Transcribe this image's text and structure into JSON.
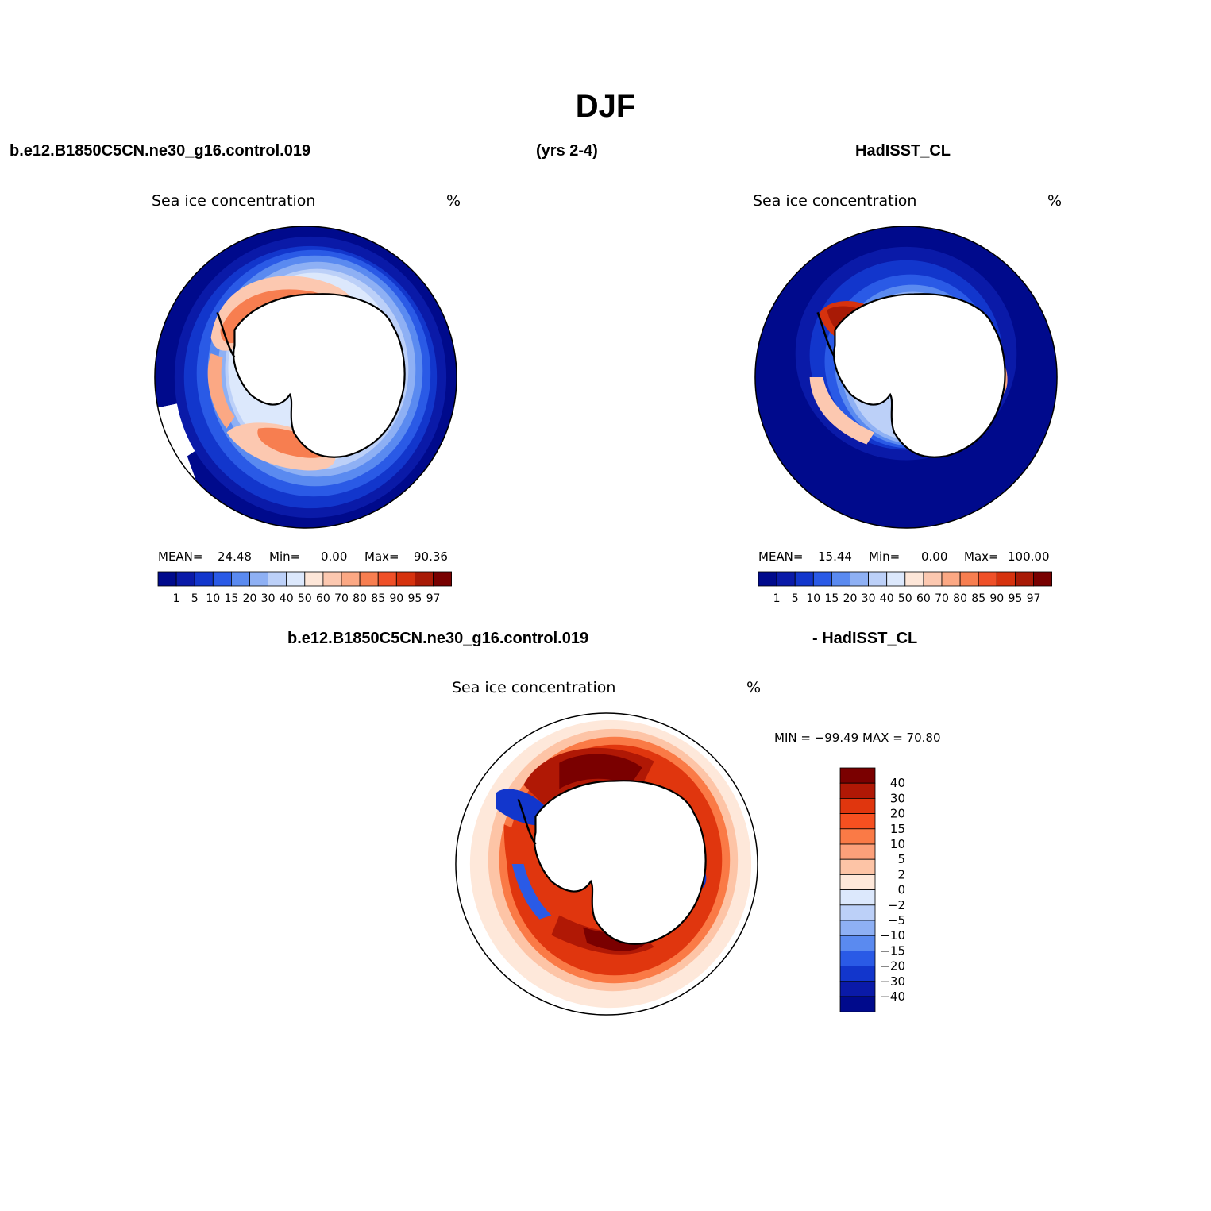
{
  "figure": {
    "title": "DJF",
    "case_name": "b.e12.B1850C5CN.ne30_g16.control.019",
    "years": "(yrs 2-4)",
    "obs_name": "HadISST_CL",
    "diff_left": "b.e12.B1850C5CN.ne30_g16.control.019",
    "diff_right": "- HadISST_CL"
  },
  "panels": {
    "model": {
      "title": "Sea ice concentration",
      "units": "%",
      "mean_label": "MEAN=",
      "mean_value": "24.48",
      "min_label": "Min=",
      "min_value": "0.00",
      "max_label": "Max=",
      "max_value": "90.36"
    },
    "obs": {
      "title": "Sea ice concentration",
      "units": "%",
      "mean_label": "MEAN=",
      "mean_value": "15.44",
      "min_label": "Min=",
      "min_value": "0.00",
      "max_label": "Max=",
      "max_value": "100.00"
    },
    "diff": {
      "title": "Sea ice concentration",
      "units": "%",
      "minmax": "MIN = −99.49 MAX =   70.80"
    }
  },
  "colorbar_abs": {
    "labels": [
      "1",
      "5",
      "10",
      "15",
      "20",
      "30",
      "40",
      "50",
      "60",
      "70",
      "80",
      "85",
      "90",
      "95",
      "97"
    ],
    "colors": [
      "#000a8c",
      "#0a1aa8",
      "#1236cc",
      "#2a5ae6",
      "#5a8af0",
      "#8eb0f4",
      "#bcd0f8",
      "#dce8fc",
      "#fde6d8",
      "#fcc8b0",
      "#fba884",
      "#f77e50",
      "#ef5028",
      "#d6320e",
      "#a81a06",
      "#780000"
    ]
  },
  "colorbar_diff": {
    "labels": [
      "40",
      "30",
      "20",
      "15",
      "10",
      "5",
      "2",
      "0",
      "−2",
      "−5",
      "−10",
      "−15",
      "−20",
      "−30",
      "−40"
    ],
    "colors": [
      "#7a0000",
      "#b01805",
      "#e0360e",
      "#f65020",
      "#fa7a46",
      "#fca07a",
      "#fdc4a6",
      "#fee8da",
      "#dce8fc",
      "#bcd0f8",
      "#8eb0f4",
      "#5a8af0",
      "#2a5ae6",
      "#1236cc",
      "#0a1aa8",
      "#000a8c"
    ]
  },
  "chart_data": [
    {
      "type": "heatmap",
      "title": "Sea ice concentration",
      "units": "%",
      "levels": [
        1,
        5,
        10,
        15,
        20,
        30,
        40,
        50,
        60,
        70,
        80,
        85,
        90,
        95,
        97
      ],
      "stats": {
        "mean": 24.48,
        "min": 0.0,
        "max": 90.36
      }
    },
    {
      "type": "heatmap",
      "title": "Sea ice concentration",
      "units": "%",
      "levels": [
        1,
        5,
        10,
        15,
        20,
        30,
        40,
        50,
        60,
        70,
        80,
        85,
        90,
        95,
        97
      ],
      "stats": {
        "mean": 15.44,
        "min": 0.0,
        "max": 100.0
      }
    },
    {
      "type": "heatmap",
      "title": "Sea ice concentration",
      "units": "%",
      "levels": [
        40,
        30,
        20,
        15,
        10,
        5,
        2,
        0,
        -2,
        -5,
        -10,
        -15,
        -20,
        -30,
        -40
      ],
      "stats": {
        "min": -99.49,
        "max": 70.8
      }
    }
  ]
}
